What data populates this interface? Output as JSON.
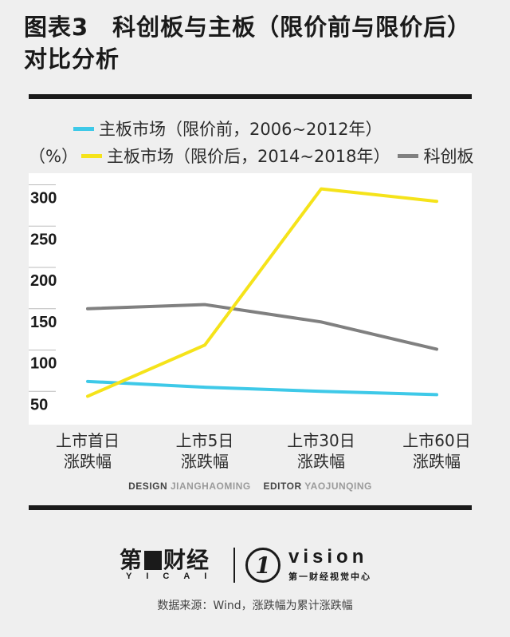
{
  "title": "图表3　科创板与主板（限价前与限价后）对比分析",
  "legend": {
    "unit": "（%）",
    "items": [
      {
        "label": "主板市场（限价前，2006~2012年）",
        "color": "#3ec9e8"
      },
      {
        "label": "主板市场（限价后，2014~2018年）",
        "color": "#f5e31a"
      },
      {
        "label": "科创板",
        "color": "#808080"
      }
    ]
  },
  "chart_data": {
    "type": "line",
    "categories": [
      "上市首日涨跌幅",
      "上市5日涨跌幅",
      "上市30日涨跌幅",
      "上市60日涨跌幅"
    ],
    "category_lines": [
      [
        "上市首日",
        "涨跌幅"
      ],
      [
        "上市5日",
        "涨跌幅"
      ],
      [
        "上市30日",
        "涨跌幅"
      ],
      [
        "上市60日",
        "涨跌幅"
      ]
    ],
    "series": [
      {
        "name": "主板市场（限价前，2006~2012年）",
        "color": "#3ec9e8",
        "values": [
          62,
          55,
          50,
          46
        ]
      },
      {
        "name": "主板市场（限价后，2014~2018年）",
        "color": "#f5e31a",
        "values": [
          44,
          106,
          295,
          280
        ]
      },
      {
        "name": "科创板",
        "color": "#808080",
        "values": [
          150,
          155,
          134,
          101
        ]
      }
    ],
    "ylabel": "（%）",
    "yticks": [
      50,
      100,
      150,
      200,
      250,
      300
    ],
    "ylim": [
      0,
      300
    ],
    "grid": false,
    "legend_position": "top"
  },
  "credits": {
    "design_role": "DESIGN",
    "design_name": "JIANGHAOMING",
    "editor_role": "EDITOR",
    "editor_name": "YAOJUNQING"
  },
  "brand": {
    "main_before": "第",
    "main_after": "财经",
    "sub": "YICAI",
    "vision_mark": "1",
    "vision_word": "vision",
    "vision_sub": "第一财经视觉中心"
  },
  "source": "数据来源：Wind，涨跌幅为累计涨跌幅"
}
